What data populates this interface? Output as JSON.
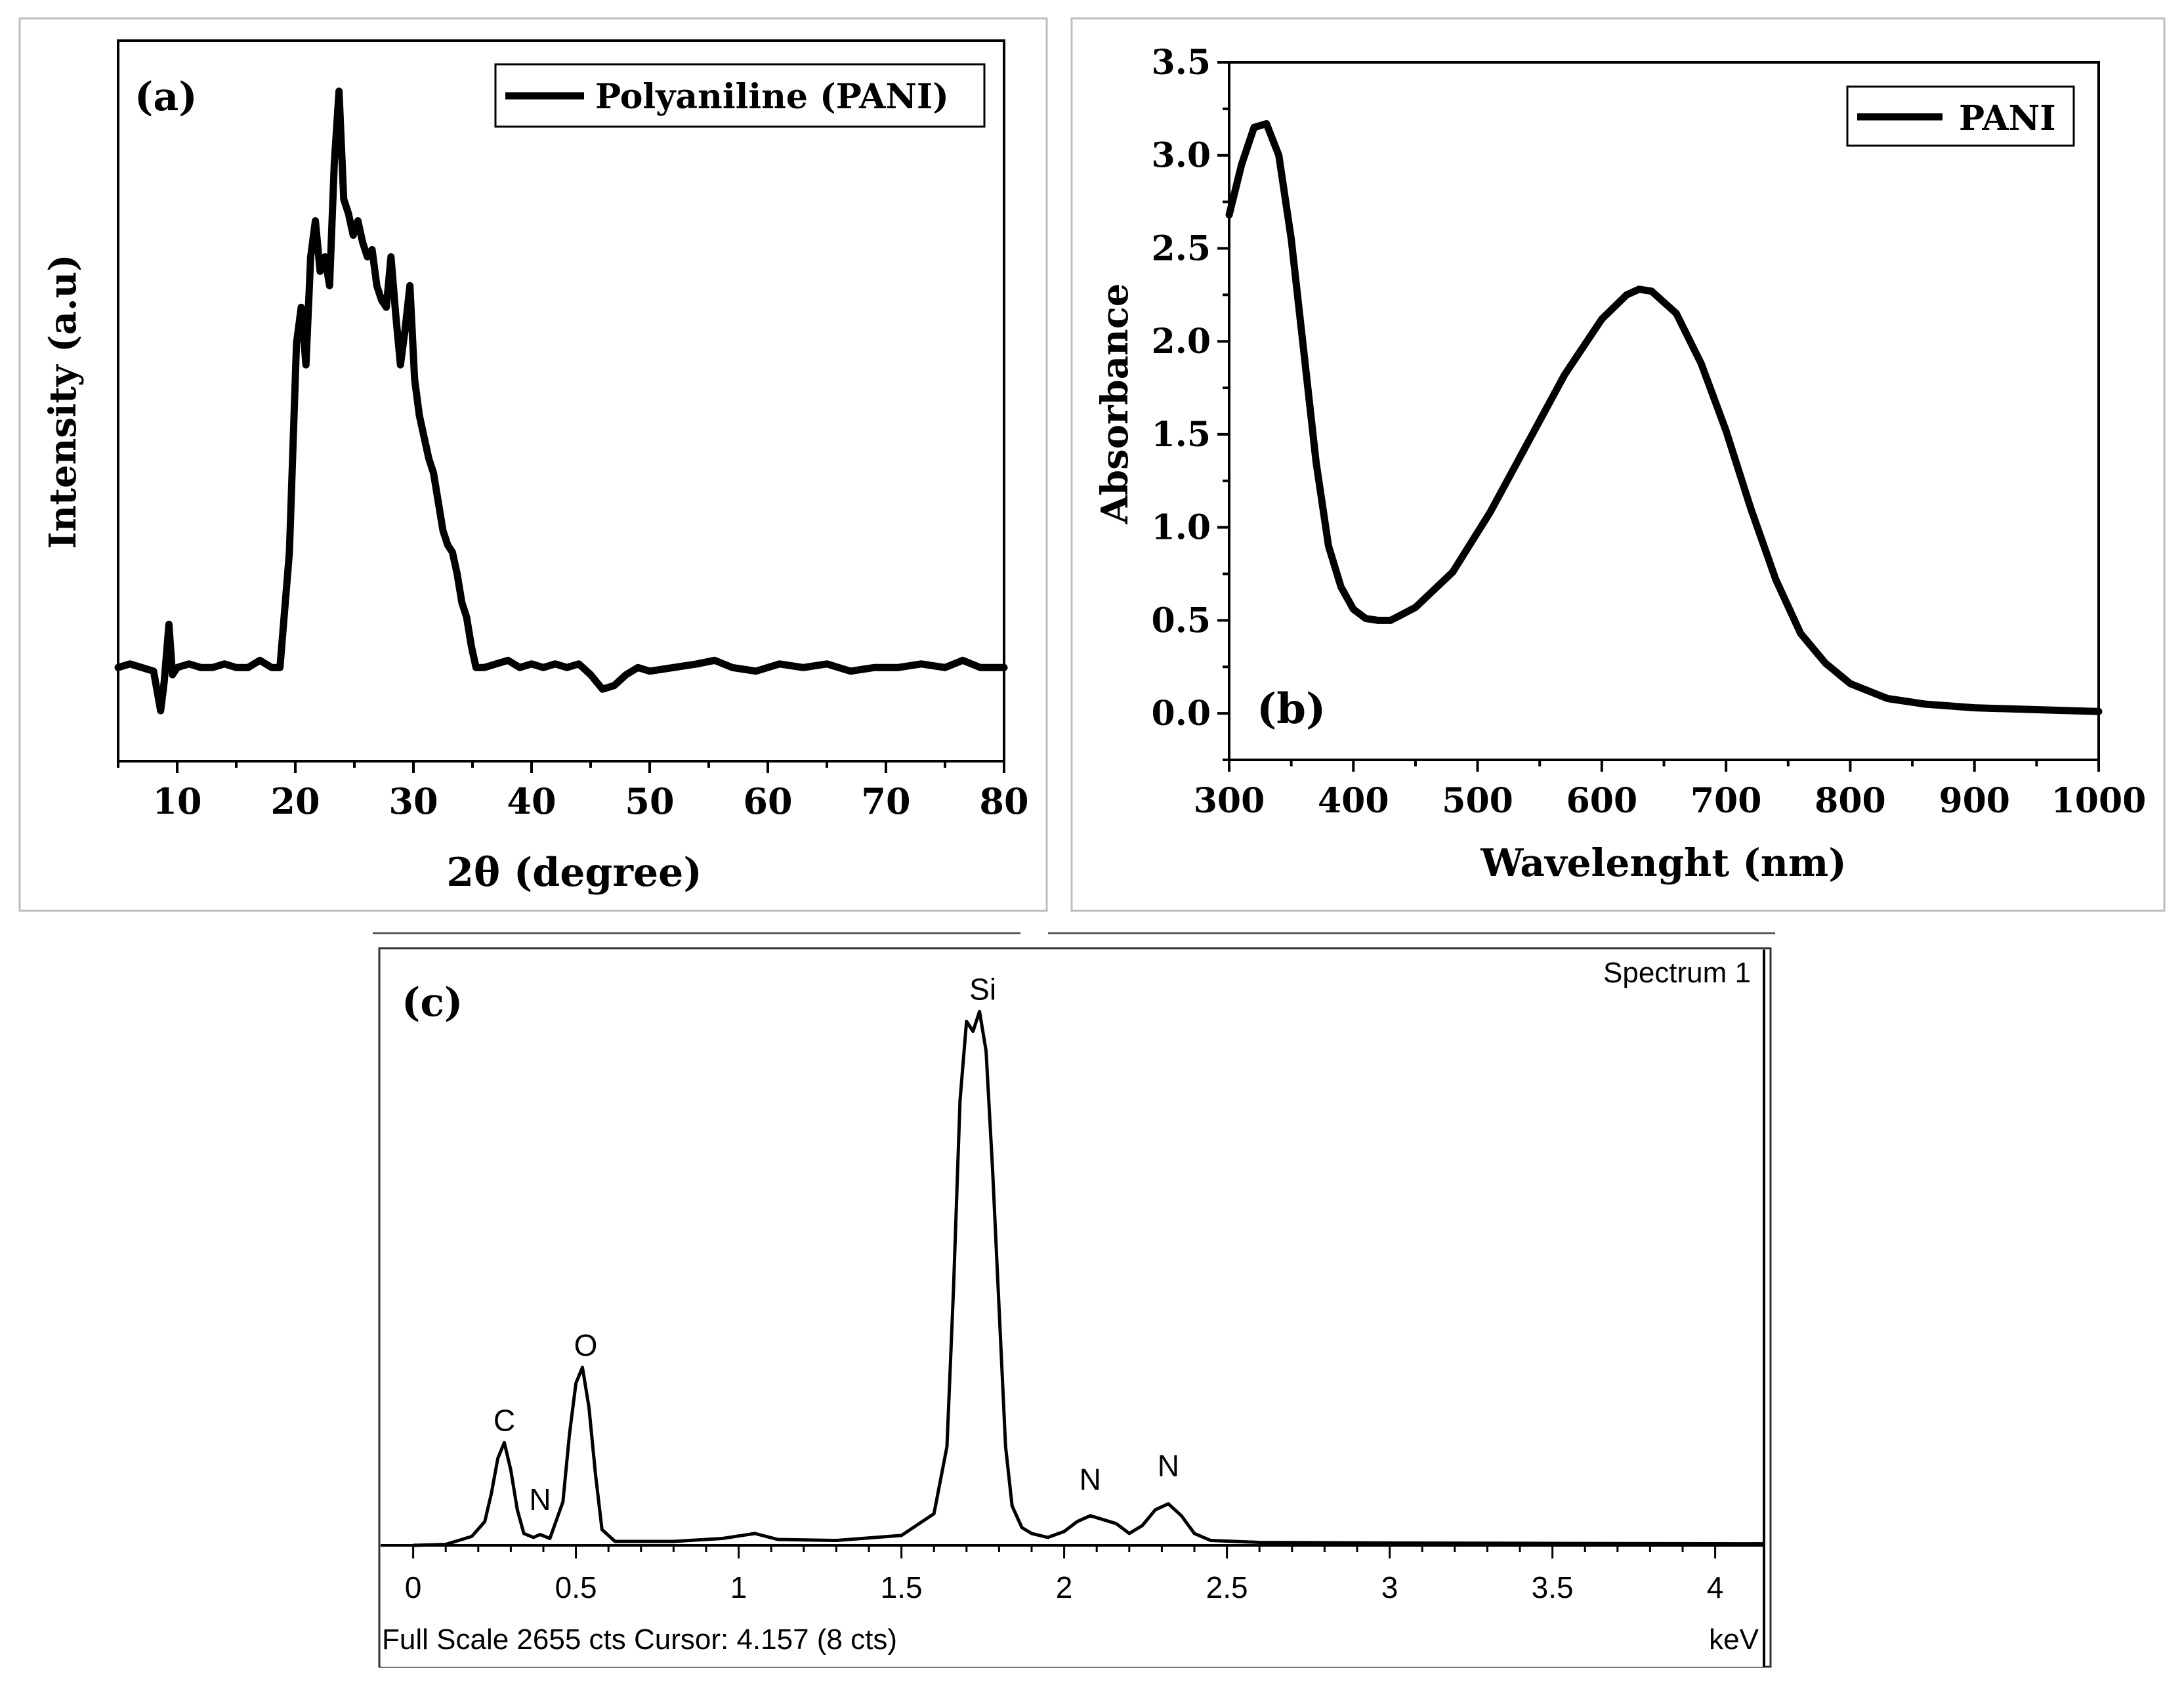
{
  "chart_data": [
    {
      "id": "a",
      "type": "line",
      "panel_label": "(a)",
      "title": "",
      "legend": [
        "Polyaniline (PANI)"
      ],
      "legend_position": "top-right",
      "xlabel": "2θ (degree)",
      "ylabel": "Intensity (a.u)",
      "xlim": [
        5,
        80
      ],
      "ylim": [
        0,
        1
      ],
      "xticks": [
        10,
        20,
        30,
        40,
        50,
        60,
        70,
        80
      ],
      "series": [
        {
          "name": "Polyaniline (PANI)",
          "x": [
            5,
            6,
            7,
            8,
            8.6,
            8.9,
            9.3,
            9.6,
            10,
            11,
            12,
            13,
            14,
            15,
            16,
            17,
            18,
            18.7,
            19.5,
            20.1,
            20.5,
            20.9,
            21.3,
            21.7,
            22.1,
            22.5,
            22.9,
            23.3,
            23.7,
            24.1,
            24.5,
            24.9,
            25.3,
            25.7,
            26.1,
            26.5,
            26.9,
            27.3,
            27.7,
            28.1,
            28.5,
            28.9,
            29.3,
            29.7,
            30.1,
            30.5,
            30.9,
            31.3,
            31.7,
            32.1,
            32.5,
            32.9,
            33.3,
            33.7,
            34.1,
            34.5,
            34.9,
            35.3,
            36,
            37,
            38,
            39,
            40,
            41,
            42,
            43,
            44,
            45,
            46,
            47,
            48,
            49,
            50,
            52,
            54,
            55.5,
            57,
            59,
            61,
            63,
            65,
            67,
            69,
            71,
            73,
            75,
            76.5,
            78,
            80
          ],
          "values": [
            0.13,
            0.135,
            0.13,
            0.125,
            0.07,
            0.11,
            0.19,
            0.12,
            0.13,
            0.135,
            0.13,
            0.13,
            0.135,
            0.13,
            0.13,
            0.14,
            0.13,
            0.13,
            0.29,
            0.58,
            0.63,
            0.55,
            0.7,
            0.75,
            0.68,
            0.7,
            0.66,
            0.83,
            0.93,
            0.78,
            0.76,
            0.73,
            0.75,
            0.72,
            0.7,
            0.71,
            0.66,
            0.64,
            0.63,
            0.7,
            0.62,
            0.55,
            0.6,
            0.66,
            0.53,
            0.48,
            0.45,
            0.42,
            0.4,
            0.36,
            0.32,
            0.3,
            0.29,
            0.26,
            0.22,
            0.2,
            0.16,
            0.13,
            0.13,
            0.135,
            0.14,
            0.13,
            0.135,
            0.13,
            0.135,
            0.13,
            0.135,
            0.12,
            0.1,
            0.105,
            0.12,
            0.13,
            0.125,
            0.13,
            0.135,
            0.14,
            0.13,
            0.125,
            0.135,
            0.13,
            0.135,
            0.125,
            0.13,
            0.13,
            0.135,
            0.13,
            0.14,
            0.13,
            0.13
          ]
        }
      ]
    },
    {
      "id": "b",
      "type": "line",
      "panel_label": "(b)",
      "title": "",
      "legend": [
        "PANI"
      ],
      "legend_position": "top-right",
      "xlabel": "Wavelenght (nm)",
      "ylabel": "Absorbance",
      "xlim": [
        300,
        1000
      ],
      "ylim": [
        -0.25,
        3.5
      ],
      "xticks": [
        300,
        400,
        500,
        600,
        700,
        800,
        900,
        1000
      ],
      "yticks": [
        0.0,
        0.5,
        1.0,
        1.5,
        2.0,
        2.5,
        3.0,
        3.5
      ],
      "ytick_labels": [
        "0.0",
        "0.5",
        "1.0",
        "1.5",
        "2.0",
        "2.5",
        "3.0",
        "3.5"
      ],
      "series": [
        {
          "name": "PANI",
          "x": [
            300,
            310,
            320,
            330,
            340,
            350,
            360,
            370,
            380,
            390,
            400,
            410,
            420,
            430,
            450,
            480,
            510,
            540,
            570,
            600,
            620,
            630,
            640,
            660,
            680,
            700,
            720,
            740,
            760,
            780,
            800,
            830,
            860,
            900,
            950,
            1000
          ],
          "values": [
            2.68,
            2.95,
            3.15,
            3.17,
            3.0,
            2.55,
            1.95,
            1.35,
            0.9,
            0.68,
            0.56,
            0.51,
            0.5,
            0.5,
            0.57,
            0.76,
            1.08,
            1.45,
            1.82,
            2.12,
            2.25,
            2.28,
            2.27,
            2.15,
            1.88,
            1.52,
            1.1,
            0.72,
            0.43,
            0.27,
            0.16,
            0.08,
            0.05,
            0.03,
            0.02,
            0.01
          ]
        }
      ]
    },
    {
      "id": "c",
      "type": "line",
      "panel_label": "(c)",
      "title": "Spectrum 1",
      "xlabel": "keV",
      "ylabel": "",
      "xlim": [
        -0.1,
        4.15
      ],
      "ylim": [
        0,
        2655
      ],
      "xticks": [
        0,
        0.5,
        1,
        1.5,
        2,
        2.5,
        3,
        3.5,
        4
      ],
      "xtick_labels": [
        "0",
        "0.5",
        "1",
        "1.5",
        "2",
        "2.5",
        "3",
        "3.5",
        "4"
      ],
      "footer": "Full Scale 2655 cts Cursor: 4.157  (8 cts)",
      "annotations": [
        {
          "text": "C",
          "x": 0.28,
          "y": 520
        },
        {
          "text": "N",
          "x": 0.39,
          "y": 120
        },
        {
          "text": "O",
          "x": 0.53,
          "y": 900
        },
        {
          "text": "Si",
          "x": 1.75,
          "y": 2700
        },
        {
          "text": "N",
          "x": 2.08,
          "y": 220
        },
        {
          "text": "N",
          "x": 2.32,
          "y": 290
        }
      ],
      "series": [
        {
          "name": "Spectrum 1",
          "x": [
            0.0,
            0.1,
            0.14,
            0.18,
            0.22,
            0.24,
            0.26,
            0.28,
            0.3,
            0.32,
            0.34,
            0.37,
            0.39,
            0.42,
            0.46,
            0.48,
            0.5,
            0.52,
            0.54,
            0.56,
            0.58,
            0.62,
            0.8,
            0.95,
            1.05,
            1.12,
            1.3,
            1.5,
            1.6,
            1.64,
            1.66,
            1.68,
            1.7,
            1.72,
            1.74,
            1.76,
            1.78,
            1.8,
            1.82,
            1.84,
            1.87,
            1.9,
            1.95,
            2.0,
            2.04,
            2.08,
            2.12,
            2.16,
            2.2,
            2.24,
            2.28,
            2.32,
            2.36,
            2.4,
            2.45,
            2.6,
            3.0,
            3.5,
            4.15
          ],
          "values": [
            0,
            5,
            25,
            45,
            120,
            260,
            440,
            520,
            380,
            180,
            60,
            40,
            55,
            35,
            220,
            560,
            820,
            900,
            700,
            360,
            80,
            20,
            20,
            35,
            60,
            30,
            25,
            50,
            160,
            500,
            1300,
            2250,
            2650,
            2600,
            2700,
            2500,
            1900,
            1200,
            500,
            200,
            90,
            60,
            40,
            70,
            120,
            150,
            130,
            110,
            60,
            100,
            180,
            210,
            150,
            60,
            25,
            15,
            12,
            10,
            8
          ]
        }
      ]
    }
  ]
}
